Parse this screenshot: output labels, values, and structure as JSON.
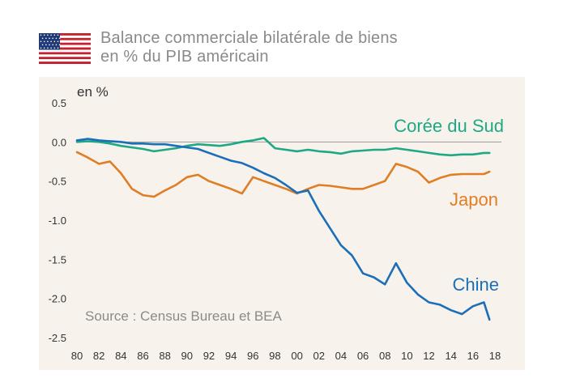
{
  "flag": {
    "icon": "us-flag-icon",
    "red": "#c8202f",
    "blue": "#1f3a76"
  },
  "title": {
    "line1": "Balance commerciale bilatérale de biens",
    "line2": "en % du PIB américain"
  },
  "source": "Source : Census Bureau et BEA",
  "colors": {
    "china": "#1a6fb8",
    "japan": "#e07d25",
    "korea": "#1ea885",
    "zero_line": "#9a9a9a",
    "panel_bg": "#f7f3ec"
  },
  "chart_data": {
    "type": "line",
    "title": "Balance commerciale bilatérale de biens en % du PIB américain",
    "ylabel": "en %",
    "xlabel": "",
    "xlim": [
      1980,
      2018
    ],
    "ylim": [
      -2.5,
      0.5
    ],
    "yticks": [
      0.5,
      0.0,
      -0.5,
      -1.0,
      -1.5,
      -2.0,
      -2.5
    ],
    "ytick_labels": [
      "0.5",
      "0.0",
      "-0.5",
      "-1.0",
      "-1.5",
      "-2.0",
      "-2.5"
    ],
    "xticks": [
      1980,
      1982,
      1984,
      1986,
      1988,
      1990,
      1992,
      1994,
      1996,
      1998,
      2000,
      2002,
      2004,
      2006,
      2008,
      2010,
      2012,
      2014,
      2016,
      2018
    ],
    "xtick_labels": [
      "80",
      "82",
      "84",
      "86",
      "88",
      "90",
      "92",
      "94",
      "96",
      "98",
      "00",
      "02",
      "04",
      "06",
      "08",
      "10",
      "12",
      "14",
      "16",
      "18"
    ],
    "grid": false,
    "series": [
      {
        "name": "Corée du Sud",
        "color": "#1ea885",
        "x": [
          1980,
          1981,
          1982,
          1983,
          1984,
          1985,
          1986,
          1987,
          1988,
          1989,
          1990,
          1991,
          1992,
          1993,
          1994,
          1995,
          1996,
          1997,
          1998,
          1999,
          2000,
          2001,
          2002,
          2003,
          2004,
          2005,
          2006,
          2007,
          2008,
          2009,
          2010,
          2011,
          2012,
          2013,
          2014,
          2015,
          2016,
          2017,
          2017.5
        ],
        "y": [
          0.0,
          0.01,
          0.0,
          -0.02,
          -0.05,
          -0.07,
          -0.09,
          -0.12,
          -0.1,
          -0.08,
          -0.05,
          -0.03,
          -0.04,
          -0.05,
          -0.03,
          0.0,
          0.02,
          0.05,
          -0.08,
          -0.1,
          -0.12,
          -0.1,
          -0.12,
          -0.13,
          -0.15,
          -0.12,
          -0.11,
          -0.1,
          -0.1,
          -0.08,
          -0.1,
          -0.12,
          -0.14,
          -0.16,
          -0.17,
          -0.16,
          -0.16,
          -0.14,
          -0.14
        ]
      },
      {
        "name": "Japon",
        "color": "#e07d25",
        "x": [
          1980,
          1981,
          1982,
          1983,
          1984,
          1985,
          1986,
          1987,
          1988,
          1989,
          1990,
          1991,
          1992,
          1993,
          1994,
          1995,
          1996,
          1997,
          1998,
          1999,
          2000,
          2001,
          2002,
          2003,
          2004,
          2005,
          2006,
          2007,
          2008,
          2009,
          2010,
          2011,
          2012,
          2013,
          2014,
          2015,
          2016,
          2017,
          2017.5
        ],
        "y": [
          -0.13,
          -0.2,
          -0.28,
          -0.25,
          -0.4,
          -0.6,
          -0.68,
          -0.7,
          -0.62,
          -0.55,
          -0.45,
          -0.42,
          -0.5,
          -0.55,
          -0.6,
          -0.66,
          -0.45,
          -0.5,
          -0.55,
          -0.6,
          -0.66,
          -0.6,
          -0.55,
          -0.56,
          -0.58,
          -0.6,
          -0.6,
          -0.55,
          -0.5,
          -0.28,
          -0.32,
          -0.38,
          -0.52,
          -0.46,
          -0.42,
          -0.41,
          -0.41,
          -0.41,
          -0.38
        ]
      },
      {
        "name": "Chine",
        "color": "#1a6fb8",
        "x": [
          1980,
          1981,
          1982,
          1983,
          1984,
          1985,
          1986,
          1987,
          1988,
          1989,
          1990,
          1991,
          1992,
          1993,
          1994,
          1995,
          1996,
          1997,
          1998,
          1999,
          2000,
          2001,
          2002,
          2003,
          2004,
          2005,
          2006,
          2007,
          2008,
          2009,
          2010,
          2011,
          2012,
          2013,
          2014,
          2015,
          2016,
          2017,
          2017.5
        ],
        "y": [
          0.02,
          0.04,
          0.02,
          0.01,
          0.0,
          -0.02,
          -0.02,
          -0.03,
          -0.03,
          -0.05,
          -0.07,
          -0.09,
          -0.14,
          -0.19,
          -0.24,
          -0.27,
          -0.33,
          -0.4,
          -0.46,
          -0.55,
          -0.65,
          -0.62,
          -0.88,
          -1.1,
          -1.32,
          -1.45,
          -1.68,
          -1.73,
          -1.82,
          -1.55,
          -1.8,
          -1.95,
          -2.05,
          -2.08,
          -2.15,
          -2.2,
          -2.1,
          -2.05,
          -2.27
        ]
      }
    ],
    "annotations": [
      "Source : Census Bureau et BEA"
    ]
  }
}
